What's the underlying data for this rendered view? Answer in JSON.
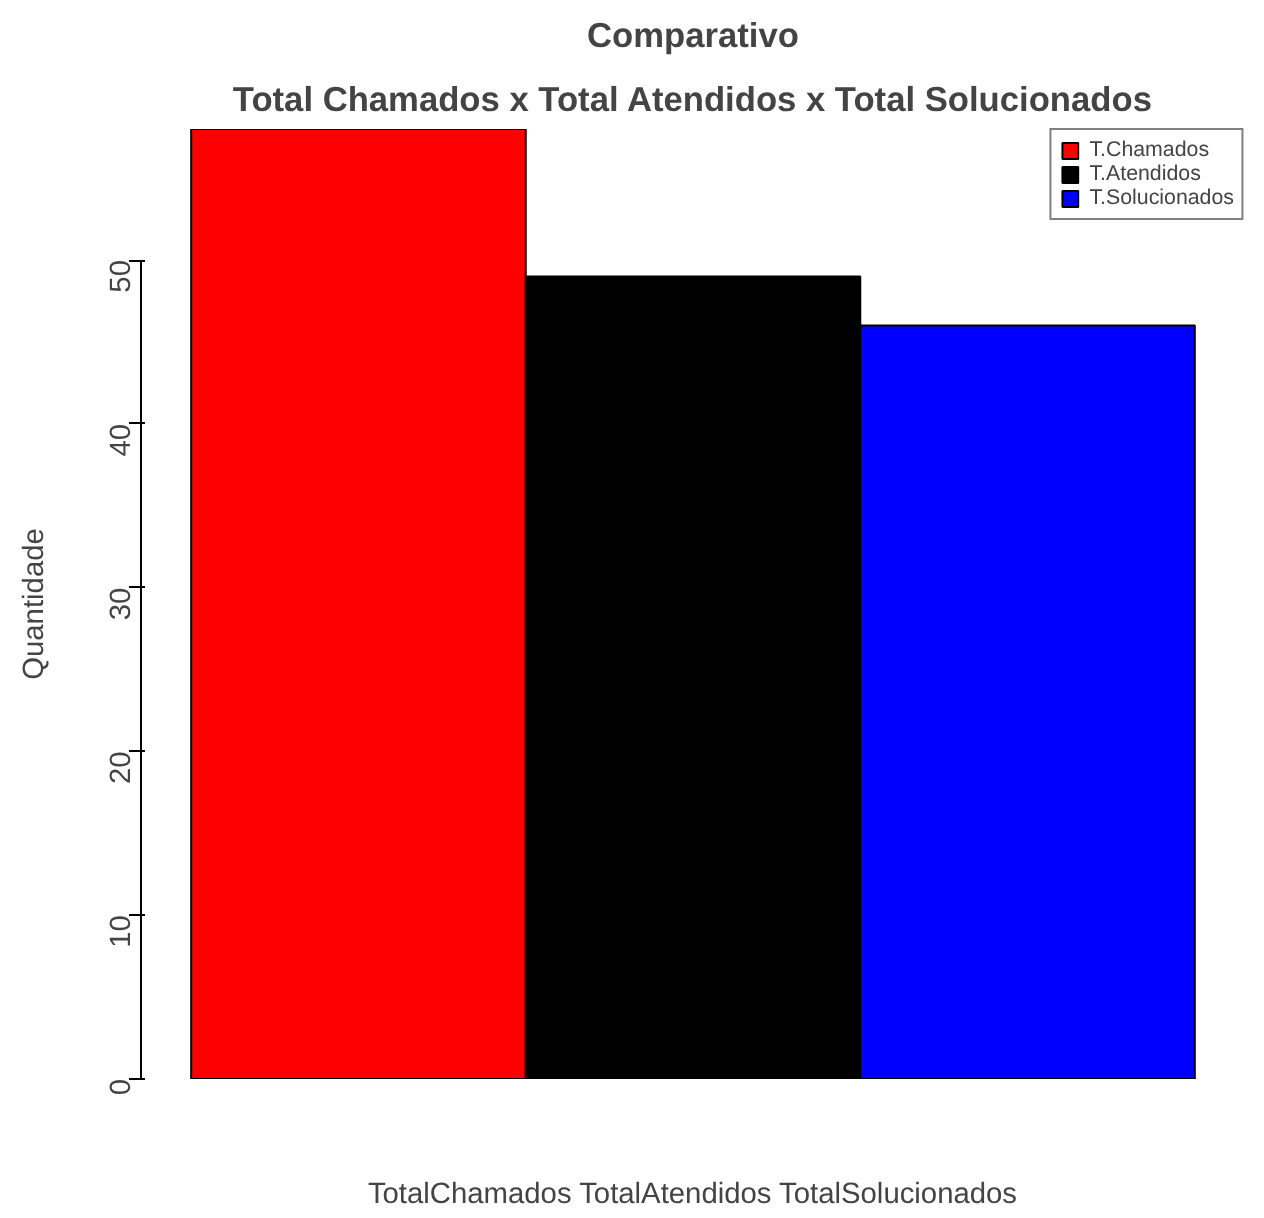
{
  "chart_data": {
    "type": "bar",
    "title": "Comparativo",
    "subtitle": "Total Chamados x Total Atendidos x Total Solucionados",
    "xlabel": "TotalChamados TotalAtendidos TotalSolucionados",
    "ylabel": "Quantidade",
    "categories": [
      null
    ],
    "series": [
      {
        "name": "T.Chamados",
        "color": "#ff0000",
        "values": [
          58
        ]
      },
      {
        "name": "T.Atendidos",
        "color": "#000000",
        "values": [
          49
        ]
      },
      {
        "name": "T.Solucionados",
        "color": "#0000ff",
        "values": [
          46
        ]
      }
    ],
    "ylim": [
      0,
      58
    ],
    "yticks": [
      0,
      10,
      20,
      30,
      40,
      50
    ],
    "grid": false,
    "legend": "top right"
  }
}
